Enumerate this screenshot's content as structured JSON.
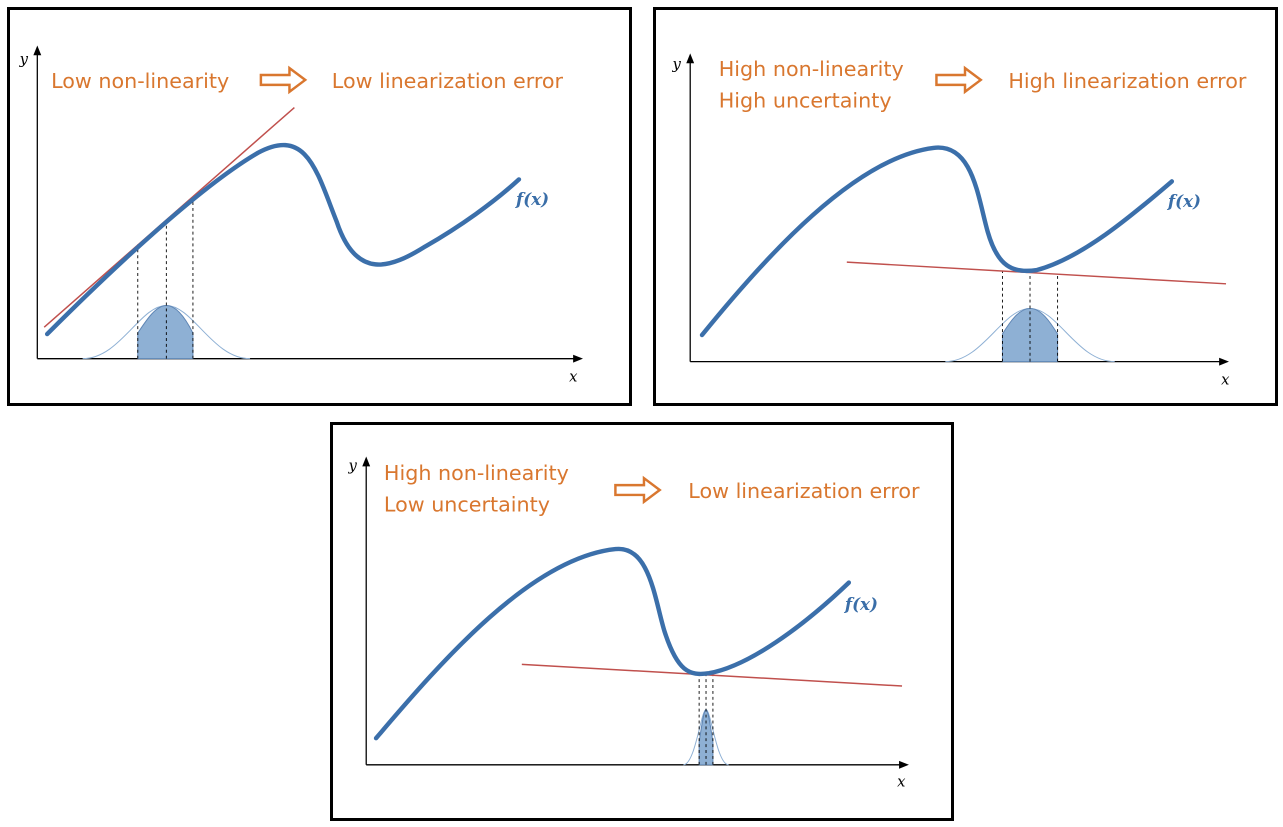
{
  "colors": {
    "curve": "#3b6faa",
    "tangent": "#c0504d",
    "label": "#d9772f",
    "fill": "#8eb0d4",
    "border": "#000000"
  },
  "panels": [
    {
      "id": "top-left",
      "condition_lines": [
        "Low non-linearity"
      ],
      "result": "Low linearization error",
      "x_label": "x",
      "y_label": "y",
      "function_label": "f(x)"
    },
    {
      "id": "top-right",
      "condition_lines": [
        "High non-linearity",
        "High uncertainty"
      ],
      "result": "High linearization error",
      "x_label": "x",
      "y_label": "y",
      "function_label": "f(x)"
    },
    {
      "id": "bottom",
      "condition_lines": [
        "High non-linearity",
        "Low uncertainty"
      ],
      "result": "Low linearization error",
      "x_label": "x",
      "y_label": "y",
      "function_label": "f(x)"
    }
  ]
}
